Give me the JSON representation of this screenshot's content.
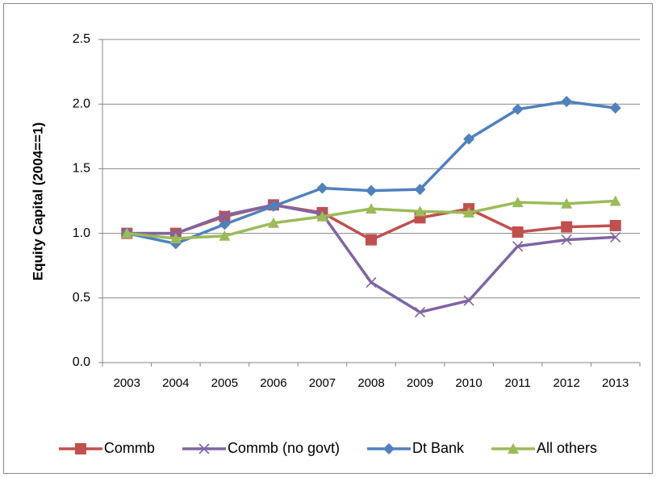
{
  "chart_data": {
    "type": "line",
    "y_label": "Equity Capital (2004==1)",
    "categories": [
      "2003",
      "2004",
      "2005",
      "2006",
      "2007",
      "2008",
      "2009",
      "2010",
      "2011",
      "2012",
      "2013"
    ],
    "series": [
      {
        "name": "Commb",
        "color": "#c0504d",
        "marker": "square",
        "values": [
          1.0,
          1.0,
          1.13,
          1.22,
          1.16,
          0.95,
          1.12,
          1.19,
          1.01,
          1.05,
          1.06
        ]
      },
      {
        "name": "Commb (no govt)",
        "color": "#8064a2",
        "marker": "x",
        "values": [
          1.0,
          1.0,
          1.14,
          1.22,
          1.15,
          0.62,
          0.39,
          0.48,
          0.9,
          0.95,
          0.97
        ]
      },
      {
        "name": "Dt Bank",
        "color": "#4f81bd",
        "marker": "diamond",
        "values": [
          1.0,
          0.92,
          1.07,
          1.21,
          1.35,
          1.33,
          1.34,
          1.73,
          1.96,
          2.02,
          1.97
        ]
      },
      {
        "name": "All others",
        "color": "#9bbb59",
        "marker": "triangle",
        "values": [
          1.0,
          0.96,
          0.98,
          1.08,
          1.13,
          1.19,
          1.17,
          1.16,
          1.24,
          1.23,
          1.25
        ]
      }
    ],
    "ylim": [
      0,
      2.5
    ],
    "yticks": [
      {
        "value": 0,
        "label": "0.0"
      },
      0.5,
      {
        "value": 1,
        "label": "1.0"
      },
      1.5,
      {
        "value": 2,
        "label": "2.0"
      },
      2.5
    ],
    "grid": true,
    "legend": "bottom"
  }
}
